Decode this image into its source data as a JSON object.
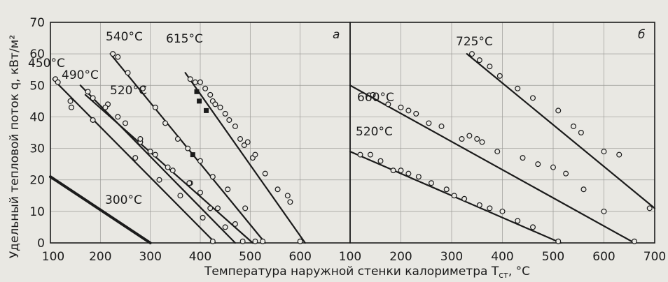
{
  "chart_data": [
    {
      "type": "scatter",
      "panel": "а",
      "xlabel": "Температура наружной стенки калориметра T",
      "xlabel_sub": "ст",
      "xlabel_unit": ", °C",
      "ylabel": "Удельный тепловой поток q, кВт/м²",
      "xlim": [
        100,
        700
      ],
      "ylim": [
        0,
        70
      ],
      "xticks": [
        "100",
        "200",
        "300",
        "400",
        "500",
        "600"
      ],
      "yticks": [
        "0",
        "10",
        "20",
        "30",
        "40",
        "50",
        "60",
        "70"
      ],
      "series": [
        {
          "name": "300°C",
          "style": "thick",
          "line": [
            [
              100,
              21
            ],
            [
              300,
              0
            ]
          ],
          "points": []
        },
        {
          "name": "450°C",
          "line": [
            [
              105,
              52
            ],
            [
              430,
              0
            ]
          ],
          "points": [
            [
              110,
              52
            ],
            [
              115,
              51
            ],
            [
              140,
              45
            ],
            [
              142,
              43
            ],
            [
              185,
              39
            ],
            [
              270,
              27
            ],
            [
              318,
              20
            ],
            [
              360,
              15
            ],
            [
              405,
              8
            ],
            [
              425,
              0.5
            ]
          ]
        },
        {
          "name": "490°C",
          "line": [
            [
              160,
              50
            ],
            [
              470,
              0
            ]
          ],
          "points": [
            [
              175,
              48
            ],
            [
              215,
              44
            ],
            [
              250,
              38
            ],
            [
              280,
              32
            ],
            [
              300,
              29
            ],
            [
              335,
              24
            ],
            [
              380,
              19
            ],
            [
              420,
              11
            ],
            [
              450,
              5
            ],
            [
              485,
              0.5
            ]
          ]
        },
        {
          "name": "520°C",
          "line": [
            [
              170,
              47
            ],
            [
              505,
              0
            ]
          ],
          "points": [
            [
              185,
              46
            ],
            [
              210,
              43
            ],
            [
              235,
              40
            ],
            [
              280,
              33
            ],
            [
              310,
              28
            ],
            [
              345,
              23
            ],
            [
              378,
              19
            ],
            [
              400,
              16
            ],
            [
              435,
              11
            ],
            [
              470,
              6
            ],
            [
              510,
              0.5
            ]
          ]
        },
        {
          "name": "540°C",
          "line": [
            [
              220,
              60
            ],
            [
              530,
              0
            ]
          ],
          "points": [
            [
              225,
              60
            ],
            [
              235,
              59
            ],
            [
              255,
              54
            ],
            [
              285,
              49
            ],
            [
              310,
              43
            ],
            [
              330,
              38
            ],
            [
              355,
              33
            ],
            [
              375,
              30
            ],
            [
              400,
              26
            ],
            [
              425,
              21
            ],
            [
              455,
              17
            ],
            [
              490,
              11
            ],
            [
              525,
              0.5
            ]
          ]
        },
        {
          "name": "615°C",
          "line": [
            [
              370,
              54
            ],
            [
              610,
              0
            ]
          ],
          "points": [
            [
              380,
              52
            ],
            [
              390,
              51
            ],
            [
              400,
              51
            ],
            [
              410,
              49
            ],
            [
              420,
              47
            ],
            [
              425,
              45
            ],
            [
              430,
              44
            ],
            [
              440,
              43
            ],
            [
              450,
              41
            ],
            [
              458,
              39
            ],
            [
              470,
              37
            ],
            [
              480,
              33
            ],
            [
              488,
              31
            ],
            [
              495,
              32
            ],
            [
              505,
              27
            ],
            [
              510,
              28
            ],
            [
              530,
              22
            ],
            [
              555,
              17
            ],
            [
              575,
              15
            ],
            [
              580,
              13
            ],
            [
              600,
              0.5
            ]
          ],
          "filled_points": [
            [
              393,
              48
            ],
            [
              398,
              45
            ],
            [
              412,
              42
            ],
            [
              385,
              28
            ]
          ]
        }
      ]
    },
    {
      "type": "scatter",
      "panel": "б",
      "xlim": [
        100,
        700
      ],
      "ylim": [
        0,
        70
      ],
      "xticks": [
        "100",
        "200",
        "300",
        "400",
        "500",
        "600",
        "700"
      ],
      "series": [
        {
          "name": "520°C",
          "line": [
            [
              100,
              29
            ],
            [
              515,
              0
            ]
          ],
          "points": [
            [
              120,
              28
            ],
            [
              140,
              28
            ],
            [
              160,
              26
            ],
            [
              185,
              23
            ],
            [
              200,
              23
            ],
            [
              215,
              22
            ],
            [
              235,
              21
            ],
            [
              260,
              19
            ],
            [
              290,
              17
            ],
            [
              305,
              15
            ],
            [
              325,
              14
            ],
            [
              355,
              12
            ],
            [
              375,
              11
            ],
            [
              400,
              10
            ],
            [
              430,
              7
            ],
            [
              460,
              5
            ],
            [
              510,
              0.5
            ]
          ]
        },
        {
          "name": "660°C",
          "line": [
            [
              100,
              50
            ],
            [
              660,
              0
            ]
          ],
          "points": [
            [
              145,
              47
            ],
            [
              175,
              44
            ],
            [
              200,
              43
            ],
            [
              215,
              42
            ],
            [
              230,
              41
            ],
            [
              255,
              38
            ],
            [
              280,
              37
            ],
            [
              320,
              33
            ],
            [
              335,
              34
            ],
            [
              350,
              33
            ],
            [
              360,
              32
            ],
            [
              390,
              29
            ],
            [
              440,
              27
            ],
            [
              470,
              25
            ],
            [
              500,
              24
            ],
            [
              525,
              22
            ],
            [
              560,
              17
            ],
            [
              600,
              10
            ],
            [
              660,
              0.5
            ]
          ]
        },
        {
          "name": "725°C",
          "line": [
            [
              330,
              60
            ],
            [
              700,
              11
            ]
          ],
          "points": [
            [
              340,
              60
            ],
            [
              355,
              58
            ],
            [
              375,
              56
            ],
            [
              395,
              53
            ],
            [
              430,
              49
            ],
            [
              460,
              46
            ],
            [
              510,
              42
            ],
            [
              540,
              37
            ],
            [
              555,
              35
            ],
            [
              600,
              29
            ],
            [
              630,
              28
            ],
            [
              690,
              11
            ]
          ]
        }
      ]
    }
  ]
}
